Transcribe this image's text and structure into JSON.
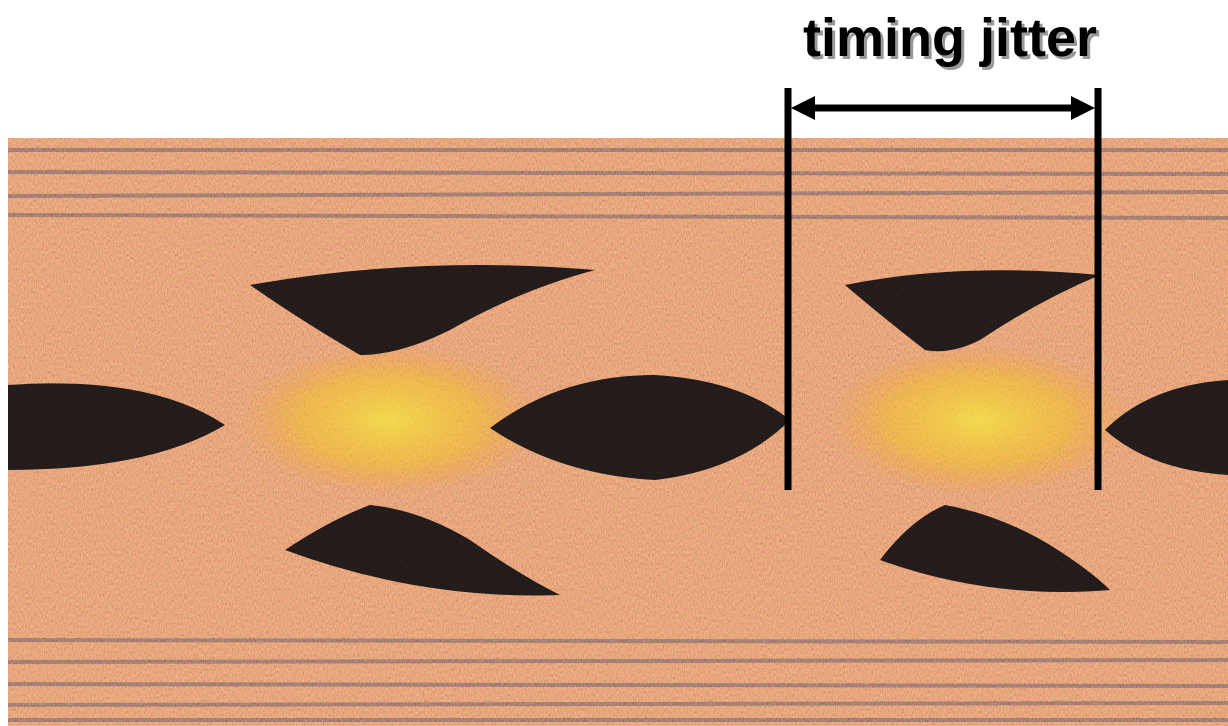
{
  "annotation": {
    "label": "timing jitter"
  }
}
